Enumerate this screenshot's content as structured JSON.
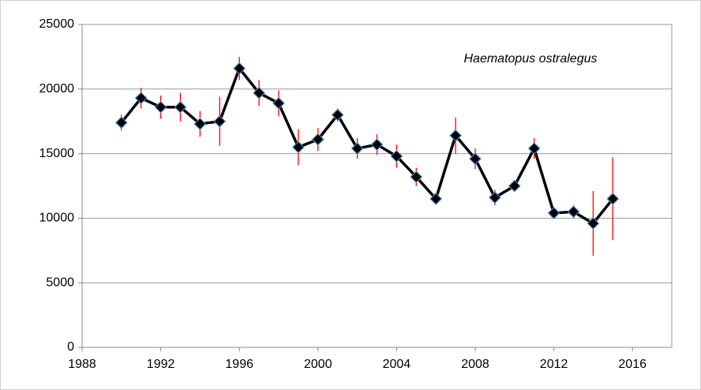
{
  "chart_data": {
    "type": "line",
    "annotation": "Haematopus ostralegus",
    "x": [
      1990,
      1991,
      1992,
      1993,
      1994,
      1995,
      1996,
      1997,
      1998,
      1999,
      2000,
      2001,
      2002,
      2003,
      2004,
      2005,
      2006,
      2007,
      2008,
      2009,
      2010,
      2011,
      2012,
      2013,
      2014,
      2015
    ],
    "series": [
      {
        "color": "#000000",
        "marker_edge": "#4f81bd",
        "error_color": "#ff0000",
        "values": [
          17400,
          19300,
          18600,
          18600,
          17300,
          17500,
          21600,
          19700,
          18900,
          15500,
          16100,
          18000,
          15400,
          15700,
          14800,
          13200,
          11500,
          16400,
          14600,
          11600,
          12500,
          15400,
          10400,
          10500,
          9600,
          11500
        ],
        "errors": [
          600,
          800,
          900,
          1100,
          1000,
          1900,
          900,
          1000,
          1000,
          1400,
          900,
          500,
          800,
          800,
          900,
          700,
          300,
          1400,
          800,
          600,
          300,
          800,
          400,
          500,
          2500,
          3200
        ]
      }
    ],
    "xlim": [
      1988,
      2018
    ],
    "xticks": [
      1988,
      1992,
      1996,
      2000,
      2004,
      2008,
      2012,
      2016
    ],
    "ylim": [
      0,
      25000
    ],
    "yticks": [
      0,
      5000,
      10000,
      15000,
      20000,
      25000
    ],
    "grid": true
  }
}
